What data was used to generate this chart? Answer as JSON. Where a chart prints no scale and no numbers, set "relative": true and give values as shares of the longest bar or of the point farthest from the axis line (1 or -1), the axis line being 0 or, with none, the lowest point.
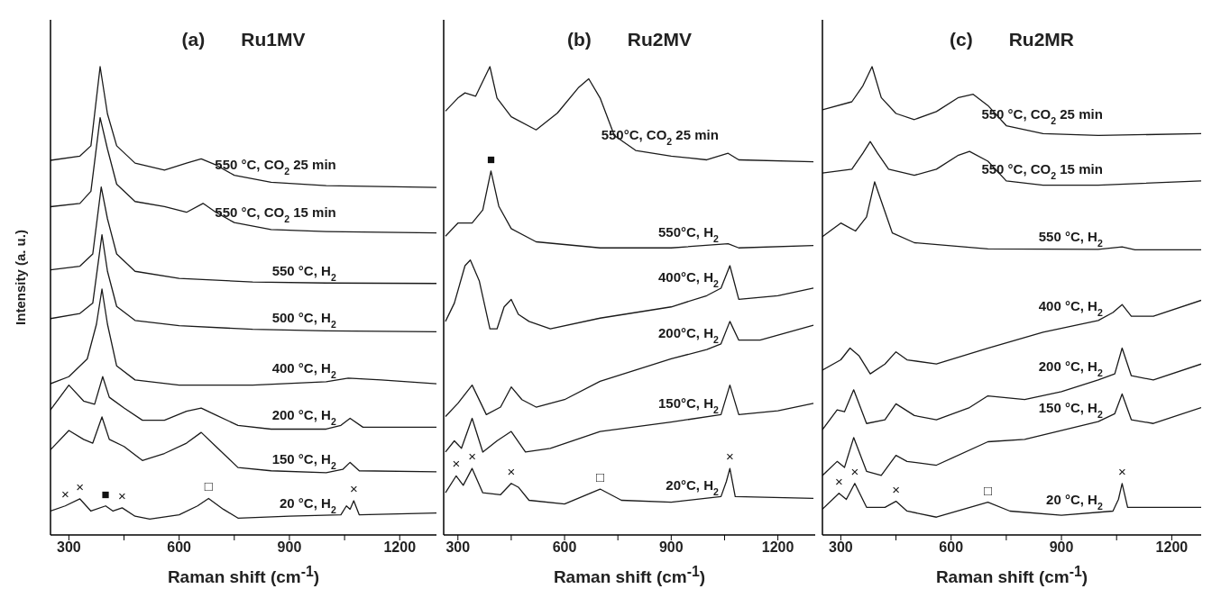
{
  "chart_data": [
    {
      "type": "line",
      "subtitle": "(a)",
      "title": "Ru1MV",
      "xlabel": "Raman shift (cm$^{-1}$)",
      "ylabel": "Intensity (a. u.)",
      "relative": true,
      "marker": "none",
      "xlim": [
        250,
        1300
      ],
      "xticks": [
        300,
        {
          "value": 450,
          "label": null
        },
        600,
        {
          "value": 750,
          "label": null
        },
        900,
        {
          "value": 1050,
          "label": null
        },
        1200
      ],
      "annotations": [
        {
          "text": "×",
          "x": 290,
          "y": 0.062
        },
        {
          "text": "×",
          "x": 330,
          "y": 0.077
        },
        {
          "text": "■",
          "x": 400,
          "y": 0.062
        },
        {
          "text": "×",
          "x": 445,
          "y": 0.058
        },
        {
          "text": "□",
          "x": 680,
          "y": 0.078
        },
        {
          "text": "×",
          "x": 1075,
          "y": 0.073
        }
      ],
      "series": [
        {
          "name": "550 °C, CO$_{2}$ 25 min",
          "color": "#1a1a1a",
          "x": [
            250,
            330,
            360,
            385,
            405,
            430,
            480,
            560,
            620,
            660,
            700,
            750,
            850,
            1000,
            1300
          ],
          "values": [
            0.8,
            0.809,
            0.831,
            1.0,
            0.899,
            0.831,
            0.794,
            0.779,
            0.794,
            0.803,
            0.79,
            0.768,
            0.753,
            0.746,
            0.742
          ]
        },
        {
          "name": "550 °C, CO$_{2}$ 15 min",
          "color": "#1a1a1a",
          "x": [
            250,
            330,
            360,
            385,
            405,
            430,
            480,
            560,
            620,
            665,
            700,
            750,
            850,
            1000,
            1300
          ],
          "values": [
            0.701,
            0.708,
            0.734,
            0.891,
            0.824,
            0.749,
            0.712,
            0.701,
            0.689,
            0.708,
            0.689,
            0.667,
            0.652,
            0.648,
            0.645
          ]
        },
        {
          "name": "550 °C, H$_{2}$",
          "color": "#1a1a1a",
          "x": [
            250,
            330,
            365,
            388,
            405,
            430,
            480,
            600,
            800,
            1000,
            1300
          ],
          "values": [
            0.566,
            0.574,
            0.6,
            0.743,
            0.675,
            0.6,
            0.563,
            0.548,
            0.54,
            0.538,
            0.537
          ]
        },
        {
          "name": "500 °C, H$_{2}$",
          "color": "#1a1a1a",
          "x": [
            250,
            330,
            365,
            390,
            405,
            430,
            480,
            600,
            800,
            1000,
            1300
          ],
          "values": [
            0.462,
            0.473,
            0.495,
            0.641,
            0.563,
            0.488,
            0.458,
            0.447,
            0.439,
            0.436,
            0.434
          ]
        },
        {
          "name": "400 °C, H$_{2}$",
          "color": "#1a1a1a",
          "x": [
            250,
            300,
            350,
            375,
            390,
            405,
            430,
            480,
            600,
            800,
            1000,
            1060,
            1150,
            1300
          ],
          "values": [
            0.323,
            0.338,
            0.376,
            0.45,
            0.525,
            0.45,
            0.361,
            0.331,
            0.32,
            0.32,
            0.327,
            0.335,
            0.331,
            0.323
          ]
        },
        {
          "name": "200 °C, H$_{2}$",
          "color": "#1a1a1a",
          "x": [
            250,
            300,
            340,
            370,
            392,
            410,
            450,
            500,
            560,
            620,
            660,
            700,
            760,
            850,
            1000,
            1040,
            1065,
            1100,
            1300
          ],
          "values": [
            0.267,
            0.32,
            0.286,
            0.279,
            0.338,
            0.294,
            0.271,
            0.245,
            0.245,
            0.264,
            0.271,
            0.256,
            0.234,
            0.226,
            0.226,
            0.234,
            0.249,
            0.23,
            0.23
          ]
        },
        {
          "name": "150 °C, H$_{2}$",
          "color": "#1a1a1a",
          "x": [
            250,
            300,
            340,
            365,
            390,
            410,
            450,
            500,
            560,
            620,
            660,
            700,
            760,
            850,
            1000,
            1045,
            1065,
            1090,
            1300
          ],
          "values": [
            0.182,
            0.223,
            0.204,
            0.196,
            0.252,
            0.204,
            0.189,
            0.159,
            0.174,
            0.196,
            0.219,
            0.189,
            0.144,
            0.137,
            0.133,
            0.14,
            0.155,
            0.137,
            0.135
          ]
        },
        {
          "name": "20 °C, H$_{2}$",
          "color": "#1a1a1a",
          "x": [
            250,
            290,
            330,
            360,
            400,
            420,
            445,
            480,
            520,
            600,
            650,
            680,
            720,
            760,
            900,
            1040,
            1055,
            1065,
            1075,
            1090,
            1300
          ],
          "values": [
            0.051,
            0.062,
            0.077,
            0.051,
            0.062,
            0.051,
            0.058,
            0.04,
            0.034,
            0.043,
            0.062,
            0.078,
            0.055,
            0.036,
            0.04,
            0.043,
            0.062,
            0.055,
            0.073,
            0.043,
            0.047
          ]
        }
      ]
    },
    {
      "type": "line",
      "subtitle": "(b)",
      "title": "Ru2MV",
      "xlabel": "Raman shift (cm$^{-1}$)",
      "relative": true,
      "marker": "none",
      "xlim": [
        260,
        1305
      ],
      "xticks": [
        300,
        {
          "value": 450,
          "label": null
        },
        600,
        {
          "value": 750,
          "label": null
        },
        900,
        {
          "value": 1050,
          "label": null
        },
        1200
      ],
      "annotations": [
        {
          "text": "×",
          "x": 295,
          "y": 0.126
        },
        {
          "text": "×",
          "x": 340,
          "y": 0.142
        },
        {
          "text": "×",
          "x": 450,
          "y": 0.11
        },
        {
          "text": "□",
          "x": 700,
          "y": 0.098
        },
        {
          "text": "×",
          "x": 1065,
          "y": 0.142
        },
        {
          "text": "■",
          "x": 393,
          "y": 0.777
        }
      ],
      "series": [
        {
          "name": "550°C, CO$_{2}$ 25 min",
          "color": "#1a1a1a",
          "x": [
            265,
            300,
            320,
            350,
            390,
            410,
            450,
            520,
            580,
            640,
            668,
            700,
            740,
            800,
            900,
            1000,
            1060,
            1090,
            1300
          ],
          "values": [
            0.905,
            0.933,
            0.944,
            0.937,
            1.0,
            0.933,
            0.893,
            0.865,
            0.901,
            0.956,
            0.974,
            0.933,
            0.853,
            0.821,
            0.809,
            0.801,
            0.815,
            0.801,
            0.797
          ]
        },
        {
          "name": "550°C, H$_{2}$",
          "color": "#1a1a1a",
          "x": [
            265,
            300,
            340,
            370,
            393,
            415,
            450,
            520,
            700,
            900,
            1060,
            1090,
            1300
          ],
          "values": [
            0.638,
            0.666,
            0.666,
            0.694,
            0.777,
            0.702,
            0.654,
            0.626,
            0.613,
            0.613,
            0.622,
            0.613,
            0.618
          ]
        },
        {
          "name": "400°C, H$_{2}$",
          "color": "#1a1a1a",
          "x": [
            265,
            290,
            320,
            335,
            360,
            390,
            410,
            430,
            450,
            470,
            500,
            560,
            700,
            900,
            1000,
            1040,
            1065,
            1090,
            1200,
            1300
          ],
          "values": [
            0.456,
            0.495,
            0.575,
            0.587,
            0.543,
            0.44,
            0.44,
            0.487,
            0.503,
            0.471,
            0.456,
            0.44,
            0.463,
            0.487,
            0.511,
            0.527,
            0.575,
            0.503,
            0.511,
            0.527
          ]
        },
        {
          "name": "200°C, H$_{2}$",
          "color": "#1a1a1a",
          "x": [
            265,
            300,
            340,
            380,
            420,
            450,
            480,
            520,
            600,
            700,
            800,
            900,
            1000,
            1040,
            1065,
            1090,
            1150,
            1300
          ],
          "values": [
            0.253,
            0.281,
            0.32,
            0.257,
            0.273,
            0.316,
            0.289,
            0.273,
            0.289,
            0.328,
            0.352,
            0.376,
            0.396,
            0.408,
            0.456,
            0.416,
            0.416,
            0.448
          ]
        },
        {
          "name": "150°C, H$_{2}$",
          "color": "#1a1a1a",
          "x": [
            265,
            290,
            310,
            340,
            370,
            410,
            450,
            490,
            560,
            700,
            900,
            1040,
            1065,
            1090,
            1200,
            1300
          ],
          "values": [
            0.177,
            0.201,
            0.185,
            0.249,
            0.177,
            0.201,
            0.221,
            0.177,
            0.185,
            0.221,
            0.241,
            0.257,
            0.32,
            0.257,
            0.265,
            0.281
          ]
        },
        {
          "name": "20°C, H$_{2}$",
          "color": "#1a1a1a",
          "x": [
            265,
            295,
            315,
            340,
            370,
            420,
            450,
            470,
            500,
            600,
            700,
            760,
            900,
            1040,
            1055,
            1065,
            1080,
            1300
          ],
          "values": [
            0.09,
            0.126,
            0.106,
            0.142,
            0.09,
            0.086,
            0.11,
            0.102,
            0.074,
            0.066,
            0.098,
            0.074,
            0.07,
            0.082,
            0.114,
            0.142,
            0.082,
            0.078
          ]
        }
      ]
    },
    {
      "type": "line",
      "subtitle": "(c)",
      "title": "Ru2MR",
      "xlabel": "Raman shift (cm$^{-1}$)",
      "relative": true,
      "marker": "none",
      "xlim": [
        250,
        1280
      ],
      "xticks": [
        300,
        {
          "value": 450,
          "label": null
        },
        600,
        {
          "value": 750,
          "label": null
        },
        900,
        {
          "value": 1050,
          "label": null
        },
        1200
      ],
      "annotations": [
        {
          "text": "×",
          "x": 295,
          "y": 0.089
        },
        {
          "text": "×",
          "x": 338,
          "y": 0.11
        },
        {
          "text": "×",
          "x": 450,
          "y": 0.072
        },
        {
          "text": "□",
          "x": 700,
          "y": 0.07
        },
        {
          "text": "×",
          "x": 1065,
          "y": 0.11
        }
      ],
      "series": [
        {
          "name": "550 °C, CO$_{2}$ 25 min",
          "color": "#1a1a1a",
          "x": [
            250,
            330,
            360,
            385,
            410,
            450,
            500,
            560,
            620,
            660,
            700,
            750,
            850,
            1000,
            1280
          ],
          "values": [
            0.908,
            0.925,
            0.959,
            1.0,
            0.934,
            0.9,
            0.887,
            0.904,
            0.934,
            0.941,
            0.917,
            0.874,
            0.857,
            0.853,
            0.857
          ]
        },
        {
          "name": "550 °C, CO$_{2}$ 15 min",
          "color": "#1a1a1a",
          "x": [
            250,
            330,
            360,
            380,
            400,
            430,
            500,
            560,
            620,
            650,
            700,
            750,
            850,
            1000,
            1280
          ],
          "values": [
            0.773,
            0.781,
            0.815,
            0.84,
            0.815,
            0.781,
            0.768,
            0.781,
            0.811,
            0.819,
            0.798,
            0.756,
            0.747,
            0.747,
            0.756
          ]
        },
        {
          "name": "550 °C, H$_{2}$",
          "color": "#1a1a1a",
          "x": [
            250,
            300,
            340,
            370,
            392,
            410,
            440,
            500,
            700,
            1000,
            1065,
            1100,
            1280
          ],
          "values": [
            0.637,
            0.666,
            0.649,
            0.679,
            0.754,
            0.713,
            0.645,
            0.624,
            0.611,
            0.61,
            0.615,
            0.609,
            0.609
          ]
        },
        {
          "name": "400 °C, H$_{2}$",
          "color": "#1a1a1a",
          "x": [
            250,
            300,
            325,
            350,
            380,
            420,
            450,
            480,
            560,
            700,
            850,
            1000,
            1040,
            1065,
            1090,
            1150,
            1280
          ],
          "values": [
            0.352,
            0.374,
            0.399,
            0.382,
            0.344,
            0.365,
            0.391,
            0.374,
            0.365,
            0.399,
            0.433,
            0.458,
            0.475,
            0.492,
            0.467,
            0.467,
            0.501
          ]
        },
        {
          "name": "200 °C, H$_{2}$",
          "color": "#1a1a1a",
          "x": [
            250,
            290,
            310,
            335,
            370,
            420,
            450,
            500,
            560,
            650,
            700,
            800,
            900,
            1000,
            1045,
            1065,
            1090,
            1150,
            1280
          ],
          "values": [
            0.225,
            0.267,
            0.263,
            0.31,
            0.238,
            0.246,
            0.28,
            0.255,
            0.246,
            0.272,
            0.297,
            0.289,
            0.306,
            0.331,
            0.344,
            0.399,
            0.34,
            0.331,
            0.365
          ]
        },
        {
          "name": "150 °C, H$_{2}$",
          "color": "#1a1a1a",
          "x": [
            250,
            290,
            310,
            335,
            370,
            410,
            450,
            480,
            560,
            700,
            800,
            1000,
            1045,
            1065,
            1090,
            1150,
            1280
          ],
          "values": [
            0.127,
            0.157,
            0.144,
            0.208,
            0.136,
            0.127,
            0.17,
            0.157,
            0.149,
            0.199,
            0.204,
            0.242,
            0.259,
            0.301,
            0.246,
            0.238,
            0.272
          ]
        },
        {
          "name": "20 °C, H$_{2}$",
          "color": "#1a1a1a",
          "x": [
            250,
            295,
            315,
            338,
            370,
            420,
            450,
            480,
            560,
            700,
            760,
            900,
            1040,
            1055,
            1065,
            1080,
            1280
          ],
          "values": [
            0.055,
            0.089,
            0.076,
            0.11,
            0.059,
            0.059,
            0.072,
            0.051,
            0.038,
            0.07,
            0.051,
            0.042,
            0.051,
            0.076,
            0.11,
            0.059,
            0.059
          ]
        }
      ]
    }
  ]
}
